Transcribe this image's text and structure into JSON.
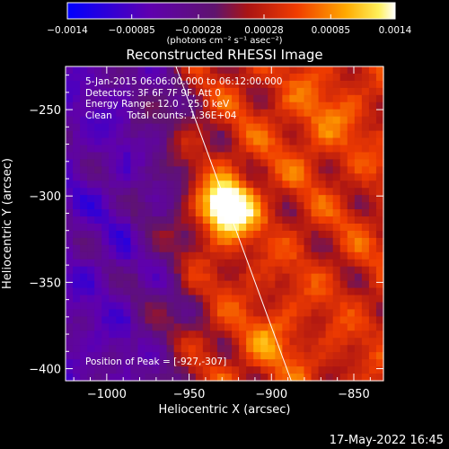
{
  "colorbar": {
    "ticks": [
      "-0.0014",
      "-0.00085",
      "-0.00028",
      "0.00028",
      "0.00085",
      "0.0014"
    ],
    "tick_values": [
      -0.0014,
      -0.00085,
      -0.00028,
      0.00028,
      0.00085,
      0.0014
    ],
    "unit_label": "(photons cm⁻² s⁻¹ asec⁻²)"
  },
  "title": "Reconstructed RHESSI Image",
  "info": {
    "line1": "5-Jan-2015 06:06:00.000 to 06:12:00.000",
    "line2": "Detectors: 3F 6F 7F 9F, Att 0",
    "line3": "Energy Range: 12.0 - 25.0 keV",
    "line4": "Clean     Total counts: 1.36E+04"
  },
  "peak_text": "Position of Peak = [-927,-307]",
  "timestamp": "17-May-2022 16:45",
  "chart_data": {
    "type": "heatmap",
    "xlabel": "Heliocentric X (arcsec)",
    "ylabel": "Heliocentric Y (arcsec)",
    "xlim": [
      -1025,
      -832
    ],
    "ylim": [
      -407,
      -225
    ],
    "xticks": [
      -1000,
      -950,
      -900,
      -850
    ],
    "xtick_labels": [
      "−1000",
      "−950",
      "−900",
      "−850"
    ],
    "yticks": [
      -250,
      -300,
      -350,
      -400
    ],
    "ytick_labels": [
      "−250",
      "−300",
      "−350",
      "−400"
    ],
    "value_range": [
      -0.0014,
      0.0014
    ],
    "peak": {
      "x": -927,
      "y": -307
    },
    "limb_line": [
      [
        -958,
        -225
      ],
      [
        -888,
        -407
      ]
    ]
  }
}
